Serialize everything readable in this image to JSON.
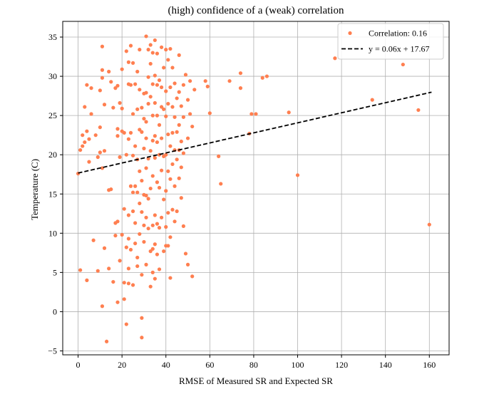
{
  "chart_data": {
    "type": "scatter",
    "title": "(high) confidence of a (weak) correlation",
    "xlabel": "RMSE of Measured SR and Expected SR",
    "ylabel": "Temperature (C)",
    "xlim": [
      -7,
      169
    ],
    "ylim": [
      -5.5,
      37
    ],
    "xticks": [
      0,
      20,
      40,
      60,
      80,
      100,
      120,
      140,
      160
    ],
    "yticks": [
      -5,
      0,
      5,
      10,
      15,
      20,
      25,
      30,
      35
    ],
    "grid": true,
    "legend_position": "top-right",
    "series": [
      {
        "name": "Correlation: 0.16",
        "kind": "scatter",
        "color": "#ff7f50",
        "points": [
          [
            0,
            17.6
          ],
          [
            1,
            20.6
          ],
          [
            1,
            5.3
          ],
          [
            2,
            21.1
          ],
          [
            2,
            22.5
          ],
          [
            3,
            26.1
          ],
          [
            3,
            21.6
          ],
          [
            4,
            28.9
          ],
          [
            4,
            23.0
          ],
          [
            4,
            4.0
          ],
          [
            5,
            22.0
          ],
          [
            5,
            19.1
          ],
          [
            6,
            25.2
          ],
          [
            6,
            28.5
          ],
          [
            7,
            9.1
          ],
          [
            8,
            22.5
          ],
          [
            9,
            5.2
          ],
          [
            9,
            19.7
          ],
          [
            10,
            23.5
          ],
          [
            10,
            20.3
          ],
          [
            10,
            28.2
          ],
          [
            11,
            33.8
          ],
          [
            11,
            30.8
          ],
          [
            11,
            29.8
          ],
          [
            11,
            18.3
          ],
          [
            12,
            26.4
          ],
          [
            12,
            8.1
          ],
          [
            11,
            0.7
          ],
          [
            12,
            20.5
          ],
          [
            13,
            -3.8
          ],
          [
            14,
            30.6
          ],
          [
            14,
            15.5
          ],
          [
            14,
            5.5
          ],
          [
            15,
            29.3
          ],
          [
            15,
            15.6
          ],
          [
            16,
            26.0
          ],
          [
            16,
            3.8
          ],
          [
            17,
            28.5
          ],
          [
            17,
            9.7
          ],
          [
            17,
            11.3
          ],
          [
            18,
            28.8
          ],
          [
            18,
            23.3
          ],
          [
            18,
            22.4
          ],
          [
            18,
            1.2
          ],
          [
            18,
            11.5
          ],
          [
            19,
            26.6
          ],
          [
            19,
            19.7
          ],
          [
            19,
            6.5
          ],
          [
            20,
            30.9
          ],
          [
            20,
            25.9
          ],
          [
            20,
            23.0
          ],
          [
            20,
            9.8
          ],
          [
            21,
            22.8
          ],
          [
            21,
            13.1
          ],
          [
            21,
            3.7
          ],
          [
            21,
            1.6
          ],
          [
            22,
            33.2
          ],
          [
            22,
            20.0
          ],
          [
            22,
            -1.6
          ],
          [
            22,
            8.2
          ],
          [
            23,
            31.8
          ],
          [
            23,
            22.0
          ],
          [
            23,
            29.0
          ],
          [
            23,
            12.3
          ],
          [
            23,
            9.3
          ],
          [
            23,
            5.5
          ],
          [
            23,
            3.6
          ],
          [
            24,
            33.9
          ],
          [
            24,
            28.9
          ],
          [
            24,
            22.8
          ],
          [
            24,
            16.0
          ],
          [
            24,
            7.9
          ],
          [
            25,
            31.7
          ],
          [
            25,
            25.2
          ],
          [
            25,
            19.9
          ],
          [
            25,
            15.2
          ],
          [
            25,
            12.8
          ],
          [
            25,
            3.4
          ],
          [
            26,
            29.0
          ],
          [
            26,
            21.1
          ],
          [
            26,
            16.0
          ],
          [
            26,
            11.3
          ],
          [
            26,
            8.7
          ],
          [
            27,
            30.6
          ],
          [
            27,
            25.8
          ],
          [
            27,
            19.4
          ],
          [
            27,
            15.2
          ],
          [
            27,
            6.9
          ],
          [
            27,
            5.8
          ],
          [
            28,
            33.4
          ],
          [
            28,
            28.3
          ],
          [
            28,
            23.2
          ],
          [
            28,
            17.9
          ],
          [
            28,
            13.8
          ],
          [
            28,
            9.9
          ],
          [
            29,
            26.0
          ],
          [
            29,
            22.9
          ],
          [
            29,
            16.7
          ],
          [
            29,
            12.7
          ],
          [
            29,
            4.7
          ],
          [
            29,
            -0.8
          ],
          [
            29,
            -3.3
          ],
          [
            30,
            27.8
          ],
          [
            30,
            24.6
          ],
          [
            30,
            20.8
          ],
          [
            30,
            14.9
          ],
          [
            30,
            11.0
          ],
          [
            30,
            8.9
          ],
          [
            31,
            35.1
          ],
          [
            31,
            27.9
          ],
          [
            31,
            24.2
          ],
          [
            31,
            22.1
          ],
          [
            31,
            18.3
          ],
          [
            31,
            14.8
          ],
          [
            31,
            12.0
          ],
          [
            31,
            6.0
          ],
          [
            32,
            33.4
          ],
          [
            32,
            29.9
          ],
          [
            32,
            26.5
          ],
          [
            32,
            19.5
          ],
          [
            32,
            14.4
          ],
          [
            32,
            10.6
          ],
          [
            33,
            34.0
          ],
          [
            33,
            31.6
          ],
          [
            33,
            27.4
          ],
          [
            33,
            20.5
          ],
          [
            33,
            15.7
          ],
          [
            33,
            7.7
          ],
          [
            33,
            3.2
          ],
          [
            34,
            33.0
          ],
          [
            34,
            29.0
          ],
          [
            34,
            25.0
          ],
          [
            34,
            21.8
          ],
          [
            34,
            17.3
          ],
          [
            34,
            11.0
          ],
          [
            34,
            8.0
          ],
          [
            34,
            5.0
          ],
          [
            35,
            34.6
          ],
          [
            35,
            30.1
          ],
          [
            35,
            26.6
          ],
          [
            35,
            22.4
          ],
          [
            35,
            19.6
          ],
          [
            35,
            12.3
          ],
          [
            35,
            8.6
          ],
          [
            35,
            4.2
          ],
          [
            36,
            32.9
          ],
          [
            36,
            28.9
          ],
          [
            36,
            25.0
          ],
          [
            36,
            21.6
          ],
          [
            36,
            16.5
          ],
          [
            36,
            11.2
          ],
          [
            36,
            7.3
          ],
          [
            37,
            29.5
          ],
          [
            37,
            23.8
          ],
          [
            37,
            20.0
          ],
          [
            37,
            15.8
          ],
          [
            37,
            10.7
          ],
          [
            37,
            5.4
          ],
          [
            38,
            33.7
          ],
          [
            38,
            28.6
          ],
          [
            38,
            26.1
          ],
          [
            38,
            22.1
          ],
          [
            38,
            18.0
          ],
          [
            38,
            12.0
          ],
          [
            39,
            31.1
          ],
          [
            39,
            25.8
          ],
          [
            39,
            19.8
          ],
          [
            39,
            14.3
          ],
          [
            39,
            7.7
          ],
          [
            40,
            33.4
          ],
          [
            40,
            28.1
          ],
          [
            40,
            24.9
          ],
          [
            40,
            20.0
          ],
          [
            40,
            15.4
          ],
          [
            40,
            10.8
          ],
          [
            40,
            8.4
          ],
          [
            41,
            32.1
          ],
          [
            41,
            26.5
          ],
          [
            41,
            22.6
          ],
          [
            41,
            17.9
          ],
          [
            41,
            12.6
          ],
          [
            41,
            8.4
          ],
          [
            42,
            33.5
          ],
          [
            42,
            28.6
          ],
          [
            42,
            21.1
          ],
          [
            42,
            16.9
          ],
          [
            42,
            9.5
          ],
          [
            42,
            4.3
          ],
          [
            43,
            31.1
          ],
          [
            43,
            26.1
          ],
          [
            43,
            22.8
          ],
          [
            43,
            18.8
          ],
          [
            43,
            13.0
          ],
          [
            44,
            29.1
          ],
          [
            44,
            24.8
          ],
          [
            44,
            20.6
          ],
          [
            44,
            16.0
          ],
          [
            44,
            11.5
          ],
          [
            45,
            27.2
          ],
          [
            45,
            22.9
          ],
          [
            45,
            19.4
          ],
          [
            45,
            12.8
          ],
          [
            46,
            32.7
          ],
          [
            46,
            28.0
          ],
          [
            46,
            23.8
          ],
          [
            46,
            20.6
          ],
          [
            46,
            17.0
          ],
          [
            47,
            26.2
          ],
          [
            47,
            21.7
          ],
          [
            47,
            18.4
          ],
          [
            47,
            14.5
          ],
          [
            48,
            28.9
          ],
          [
            48,
            24.8
          ],
          [
            48,
            20.2
          ],
          [
            48,
            10.9
          ],
          [
            49,
            30.2
          ],
          [
            49,
            7.4
          ],
          [
            50,
            27.0
          ],
          [
            50,
            22.1
          ],
          [
            50,
            6.0
          ],
          [
            51,
            25.2
          ],
          [
            51,
            29.4
          ],
          [
            52,
            23.6
          ],
          [
            52,
            4.5
          ],
          [
            53,
            28.3
          ],
          [
            58,
            29.4
          ],
          [
            59,
            28.7
          ],
          [
            60,
            25.3
          ],
          [
            64,
            19.8
          ],
          [
            65,
            16.3
          ],
          [
            69,
            29.4
          ],
          [
            74,
            28.5
          ],
          [
            74,
            30.4
          ],
          [
            78,
            22.7
          ],
          [
            79,
            25.2
          ],
          [
            81,
            25.2
          ],
          [
            84,
            29.8
          ],
          [
            86,
            30.0
          ],
          [
            96,
            25.4
          ],
          [
            100,
            17.4
          ],
          [
            117,
            32.3
          ],
          [
            134,
            27.0
          ],
          [
            148,
            31.5
          ],
          [
            155,
            25.7
          ],
          [
            160,
            11.1
          ]
        ]
      },
      {
        "name": "y = 0.06x + 17.67",
        "kind": "line",
        "style": "dashed",
        "color": "#000000",
        "slope": 0.064,
        "intercept": 17.67,
        "x": [
          0,
          161
        ]
      }
    ]
  }
}
